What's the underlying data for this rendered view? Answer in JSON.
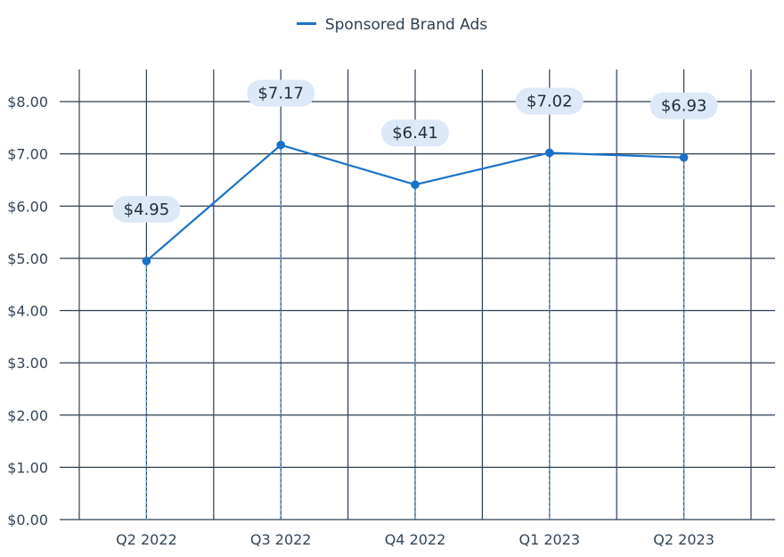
{
  "chart_data": {
    "type": "line",
    "categories": [
      "Q2 2022",
      "Q3 2022",
      "Q4 2022",
      "Q1 2023",
      "Q2 2023"
    ],
    "series": [
      {
        "name": "Sponsored Brand Ads",
        "values": [
          4.95,
          7.17,
          6.41,
          7.02,
          6.93
        ],
        "data_labels": [
          "$4.95",
          "$7.17",
          "$6.41",
          "$7.02",
          "$6.93"
        ]
      }
    ],
    "y_ticks": [
      "$0.00",
      "$1.00",
      "$2.00",
      "$3.00",
      "$4.00",
      "$5.00",
      "$6.00",
      "$7.00",
      "$8.00"
    ],
    "ylim": [
      0,
      8
    ],
    "grid": true,
    "legend_position": "top-center",
    "colors": {
      "series": "#1b72c8",
      "grid": "#2c3e55",
      "label_bg": "#dde9f7",
      "drop_line": "#5a9de0"
    }
  }
}
